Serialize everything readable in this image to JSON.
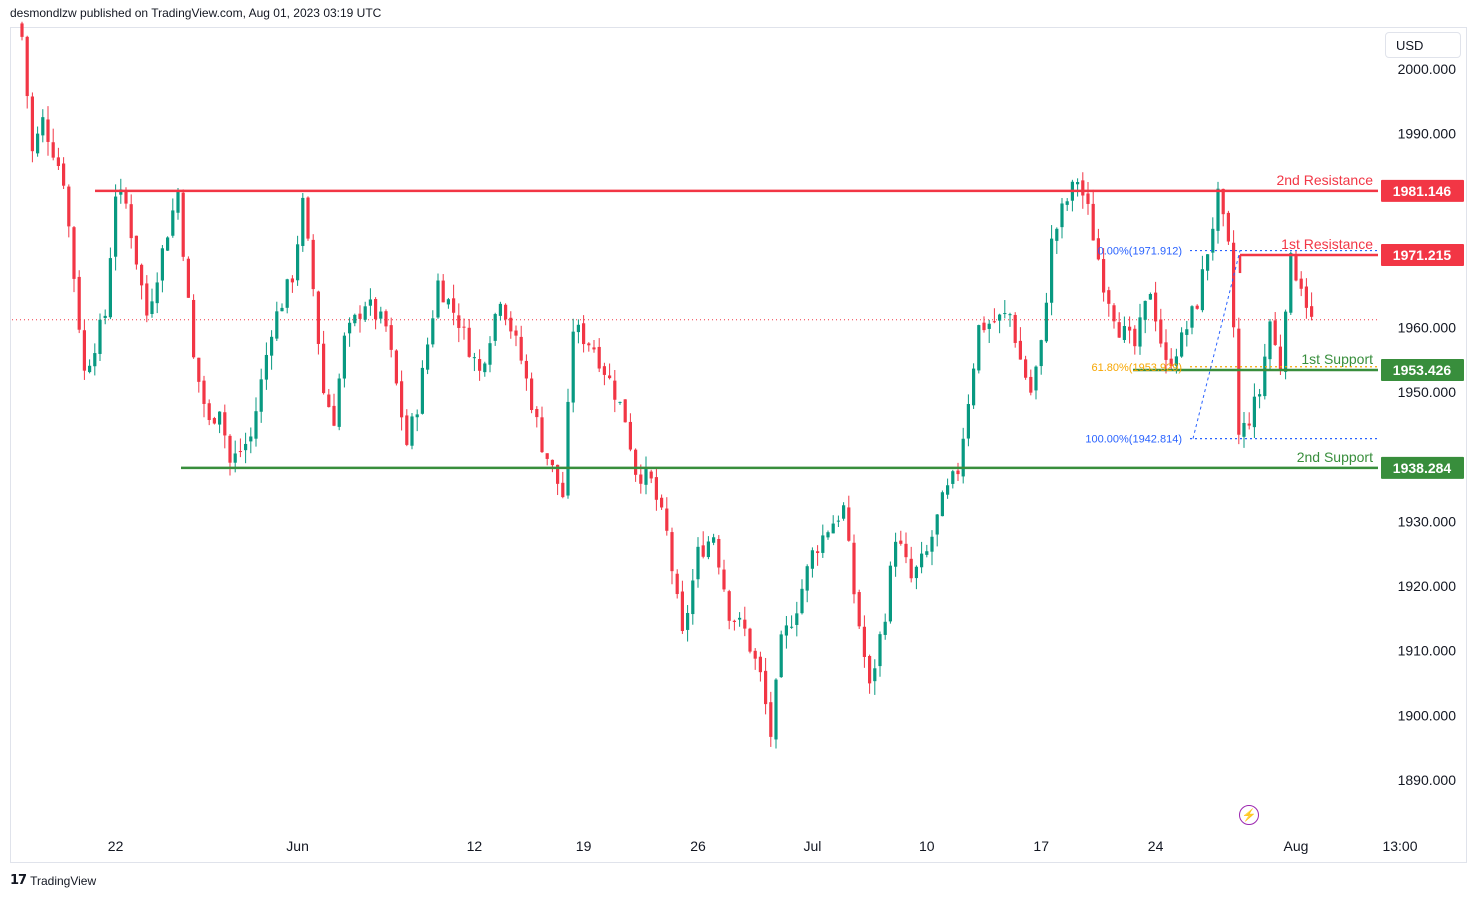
{
  "header": {
    "text": "desmondlzw published on TradingView.com, Aug 01, 2023 03:19 UTC"
  },
  "footer": {
    "logo_glyph": "17",
    "brand": "TradingView"
  },
  "currency": "USD",
  "flash_icon": "lightning-icon",
  "chart_data": {
    "type": "candlestick",
    "ylim": [
      1883,
      2005
    ],
    "y_ticks": [
      2000,
      1990,
      1960,
      1950,
      1930,
      1920,
      1910,
      1900,
      1890
    ],
    "y_tick_labels": [
      "2000.000",
      "1990.000",
      "1960.000",
      "1950.000",
      "1930.000",
      "1920.000",
      "1910.000",
      "1900.000",
      "1890.000"
    ],
    "x_ticks": [
      {
        "label": "22",
        "bar": 18
      },
      {
        "label": "Jun",
        "bar": 53
      },
      {
        "label": "12",
        "bar": 87
      },
      {
        "label": "19",
        "bar": 108
      },
      {
        "label": "26",
        "bar": 130
      },
      {
        "label": "Jul",
        "bar": 152
      },
      {
        "label": "10",
        "bar": 174
      },
      {
        "label": "17",
        "bar": 196
      },
      {
        "label": "24",
        "bar": 218
      },
      {
        "label": "Aug",
        "bar": 245
      },
      {
        "label": "13:00",
        "bar": 265
      }
    ],
    "current_price": 1961.2,
    "levels": [
      {
        "name": "2nd Resistance",
        "value": 1981.146,
        "label": "1981.146",
        "color": "#f23645"
      },
      {
        "name": "1st Resistance",
        "value": 1971.215,
        "label": "1971.215",
        "color": "#f23645"
      },
      {
        "name": "1st Support",
        "value": 1953.426,
        "label": "1953.426",
        "color": "#388e3c"
      },
      {
        "name": "2nd Support",
        "value": 1938.284,
        "label": "1938.284",
        "color": "#388e3c"
      }
    ],
    "fib_labels": [
      {
        "text": "0.00%(1971.912)",
        "value": 1971.912,
        "color": "#2962ff"
      },
      {
        "text": "61.80%(1953.929)",
        "value": 1953.929,
        "color": "#f7a600"
      },
      {
        "text": "100.00%(1942.814)",
        "value": 1942.814,
        "color": "#2962ff"
      }
    ],
    "anchors": [
      [
        0,
        2005
      ],
      [
        2,
        1987
      ],
      [
        4,
        1992
      ],
      [
        8,
        1983
      ],
      [
        12,
        1953
      ],
      [
        16,
        1962
      ],
      [
        18,
        1981
      ],
      [
        20,
        1979
      ],
      [
        24,
        1962
      ],
      [
        28,
        1975
      ],
      [
        30,
        1981
      ],
      [
        33,
        1955
      ],
      [
        36,
        1945
      ],
      [
        38,
        1948
      ],
      [
        40,
        1939
      ],
      [
        44,
        1943
      ],
      [
        48,
        1960
      ],
      [
        52,
        1968
      ],
      [
        54,
        1979
      ],
      [
        56,
        1966
      ],
      [
        58,
        1950
      ],
      [
        60,
        1946
      ],
      [
        62,
        1958
      ],
      [
        66,
        1964
      ],
      [
        70,
        1960
      ],
      [
        74,
        1942
      ],
      [
        76,
        1948
      ],
      [
        80,
        1967
      ],
      [
        84,
        1961
      ],
      [
        88,
        1953
      ],
      [
        92,
        1965
      ],
      [
        96,
        1955
      ],
      [
        100,
        1942
      ],
      [
        104,
        1934
      ],
      [
        106,
        1960
      ],
      [
        110,
        1957
      ],
      [
        114,
        1950
      ],
      [
        116,
        1946
      ],
      [
        118,
        1938
      ],
      [
        121,
        1936
      ],
      [
        124,
        1928
      ],
      [
        127,
        1912
      ],
      [
        130,
        1925
      ],
      [
        133,
        1928
      ],
      [
        136,
        1916
      ],
      [
        139,
        1913
      ],
      [
        142,
        1906
      ],
      [
        144,
        1897
      ],
      [
        146,
        1911
      ],
      [
        149,
        1917
      ],
      [
        152,
        1925
      ],
      [
        155,
        1929
      ],
      [
        158,
        1932
      ],
      [
        160,
        1919
      ],
      [
        163,
        1904
      ],
      [
        166,
        1916
      ],
      [
        168,
        1928
      ],
      [
        171,
        1921
      ],
      [
        174,
        1925
      ],
      [
        177,
        1933
      ],
      [
        180,
        1938
      ],
      [
        184,
        1960
      ],
      [
        187,
        1961
      ],
      [
        190,
        1962
      ],
      [
        192,
        1955
      ],
      [
        194,
        1950
      ],
      [
        196,
        1957
      ],
      [
        198,
        1973
      ],
      [
        200,
        1978
      ],
      [
        203,
        1983
      ],
      [
        205,
        1978
      ],
      [
        208,
        1967
      ],
      [
        211,
        1960
      ],
      [
        214,
        1957
      ],
      [
        217,
        1966
      ],
      [
        220,
        1954
      ],
      [
        223,
        1958
      ],
      [
        226,
        1964
      ],
      [
        228,
        1972
      ],
      [
        230,
        1980
      ],
      [
        232,
        1972
      ],
      [
        233,
        1960
      ],
      [
        234,
        1943
      ],
      [
        236,
        1946
      ],
      [
        238,
        1950
      ],
      [
        240,
        1961
      ],
      [
        241,
        1957
      ],
      [
        242,
        1954
      ],
      [
        243,
        1964
      ],
      [
        244,
        1970
      ],
      [
        246,
        1967
      ],
      [
        248,
        1961
      ]
    ]
  }
}
